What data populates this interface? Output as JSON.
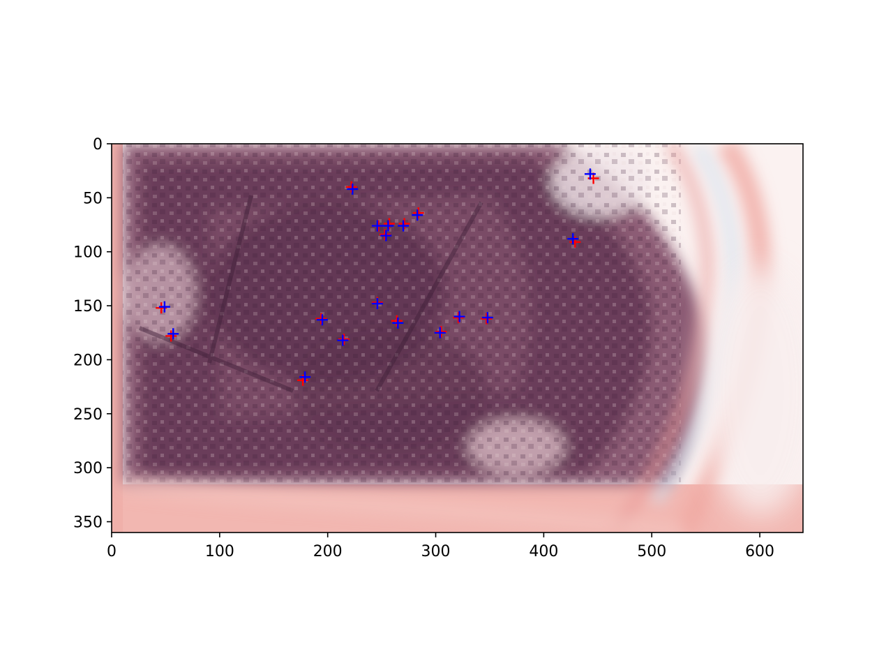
{
  "chart_data": {
    "type": "scatter",
    "title": "",
    "xlabel": "",
    "ylabel": "",
    "xlim": [
      0,
      640
    ],
    "ylim": [
      360,
      0
    ],
    "y_inverted": true,
    "grid": false,
    "legend": "none",
    "x_ticks": [
      0,
      100,
      200,
      300,
      400,
      500,
      600
    ],
    "y_ticks": [
      0,
      50,
      100,
      150,
      200,
      250,
      300,
      350
    ],
    "background_image": "aerial-urban-scene-overlay",
    "image_extent": {
      "x": [
        0,
        640
      ],
      "y": [
        0,
        360
      ]
    },
    "image_colors": {
      "dark": "#5e3350",
      "mid": "#9b6a80",
      "light_red": "#f3b6b0",
      "light_blue": "#d6e6f2",
      "white": "#fbf2f1"
    },
    "series": [
      {
        "marker": "+",
        "color": "#ff0000",
        "points": [
          [
            222,
            40
          ],
          [
            247,
            76
          ],
          [
            257,
            74
          ],
          [
            271,
            74
          ],
          [
            284,
            64
          ],
          [
            253,
            84
          ],
          [
            446,
            32
          ],
          [
            429,
            91
          ],
          [
            246,
            147
          ],
          [
            194,
            162
          ],
          [
            264,
            164
          ],
          [
            215,
            181
          ],
          [
            305,
            174
          ],
          [
            321,
            161
          ],
          [
            347,
            162
          ],
          [
            46,
            152
          ],
          [
            55,
            178
          ],
          [
            177,
            219
          ]
        ]
      },
      {
        "marker": "+",
        "color": "#0000ff",
        "points": [
          [
            223,
            42
          ],
          [
            246,
            76
          ],
          [
            256,
            76
          ],
          [
            270,
            76
          ],
          [
            283,
            66
          ],
          [
            254,
            85
          ],
          [
            443,
            28
          ],
          [
            427,
            88
          ],
          [
            246,
            148
          ],
          [
            195,
            163
          ],
          [
            265,
            166
          ],
          [
            214,
            182
          ],
          [
            304,
            175
          ],
          [
            322,
            160
          ],
          [
            348,
            161
          ],
          [
            49,
            151
          ],
          [
            57,
            176
          ],
          [
            179,
            216
          ]
        ]
      }
    ]
  }
}
